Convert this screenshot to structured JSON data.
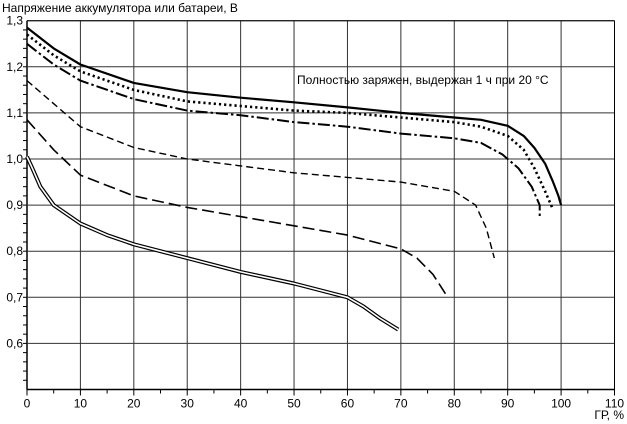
{
  "chart_data": {
    "type": "line",
    "title": "",
    "ylabel": "Напряжение аккумулятора или батареи, В",
    "xlabel": "ГР, %",
    "annotation": "Полностью заряжен, выдержан 1 ч при 20 °C",
    "xlim": [
      0,
      110
    ],
    "ylim": [
      0.5,
      1.3
    ],
    "grid": true,
    "x_ticks": [
      "0",
      "10",
      "20",
      "30",
      "40",
      "50",
      "60",
      "70",
      "80",
      "90",
      "100",
      "110"
    ],
    "y_ticks": [
      "0,6",
      "0,7",
      "0,8",
      "0,9",
      "1,0",
      "1,1",
      "1,2",
      "1,3"
    ],
    "series": [
      {
        "style": "solid-thick",
        "points": [
          [
            0,
            1.285
          ],
          [
            5,
            1.24
          ],
          [
            10,
            1.205
          ],
          [
            20,
            1.165
          ],
          [
            30,
            1.145
          ],
          [
            40,
            1.133
          ],
          [
            50,
            1.123
          ],
          [
            60,
            1.112
          ],
          [
            70,
            1.1
          ],
          [
            80,
            1.09
          ],
          [
            85,
            1.085
          ],
          [
            90,
            1.072
          ],
          [
            93,
            1.05
          ],
          [
            95,
            1.024
          ],
          [
            97,
            0.99
          ],
          [
            98.5,
            0.95
          ],
          [
            99.5,
            0.92
          ],
          [
            100,
            0.9
          ]
        ]
      },
      {
        "style": "dotted",
        "points": [
          [
            0,
            1.27
          ],
          [
            5,
            1.225
          ],
          [
            10,
            1.19
          ],
          [
            20,
            1.15
          ],
          [
            30,
            1.125
          ],
          [
            40,
            1.115
          ],
          [
            50,
            1.105
          ],
          [
            60,
            1.1
          ],
          [
            70,
            1.09
          ],
          [
            80,
            1.08
          ],
          [
            85,
            1.07
          ],
          [
            90,
            1.05
          ],
          [
            93,
            1.02
          ],
          [
            95,
            0.98
          ],
          [
            97,
            0.93
          ],
          [
            98.5,
            0.89
          ]
        ]
      },
      {
        "style": "dash-dot",
        "points": [
          [
            0,
            1.25
          ],
          [
            5,
            1.205
          ],
          [
            10,
            1.17
          ],
          [
            20,
            1.13
          ],
          [
            30,
            1.105
          ],
          [
            40,
            1.095
          ],
          [
            50,
            1.08
          ],
          [
            60,
            1.07
          ],
          [
            70,
            1.055
          ],
          [
            80,
            1.045
          ],
          [
            85,
            1.035
          ],
          [
            89,
            1.01
          ],
          [
            92,
            0.98
          ],
          [
            94.5,
            0.94
          ],
          [
            96,
            0.9
          ],
          [
            96,
            0.87
          ]
        ]
      },
      {
        "style": "short-dash",
        "points": [
          [
            0,
            1.17
          ],
          [
            5,
            1.12
          ],
          [
            10,
            1.07
          ],
          [
            20,
            1.025
          ],
          [
            30,
            1.0
          ],
          [
            40,
            0.985
          ],
          [
            50,
            0.97
          ],
          [
            60,
            0.96
          ],
          [
            70,
            0.95
          ],
          [
            80,
            0.93
          ],
          [
            84,
            0.9
          ],
          [
            86,
            0.85
          ],
          [
            87.5,
            0.785
          ]
        ]
      },
      {
        "style": "long-dash",
        "points": [
          [
            0,
            1.085
          ],
          [
            5,
            1.02
          ],
          [
            10,
            0.965
          ],
          [
            20,
            0.92
          ],
          [
            30,
            0.895
          ],
          [
            40,
            0.875
          ],
          [
            50,
            0.855
          ],
          [
            60,
            0.835
          ],
          [
            70,
            0.805
          ],
          [
            73,
            0.785
          ],
          [
            76,
            0.75
          ],
          [
            78.5,
            0.705
          ]
        ]
      },
      {
        "style": "double-line",
        "points": [
          [
            0,
            1.005
          ],
          [
            1,
            0.98
          ],
          [
            2.5,
            0.94
          ],
          [
            5,
            0.9
          ],
          [
            10,
            0.86
          ],
          [
            15,
            0.835
          ],
          [
            20,
            0.815
          ],
          [
            30,
            0.785
          ],
          [
            40,
            0.755
          ],
          [
            50,
            0.73
          ],
          [
            60,
            0.7
          ],
          [
            63,
            0.68
          ],
          [
            66,
            0.655
          ],
          [
            69.5,
            0.63
          ]
        ]
      }
    ]
  }
}
